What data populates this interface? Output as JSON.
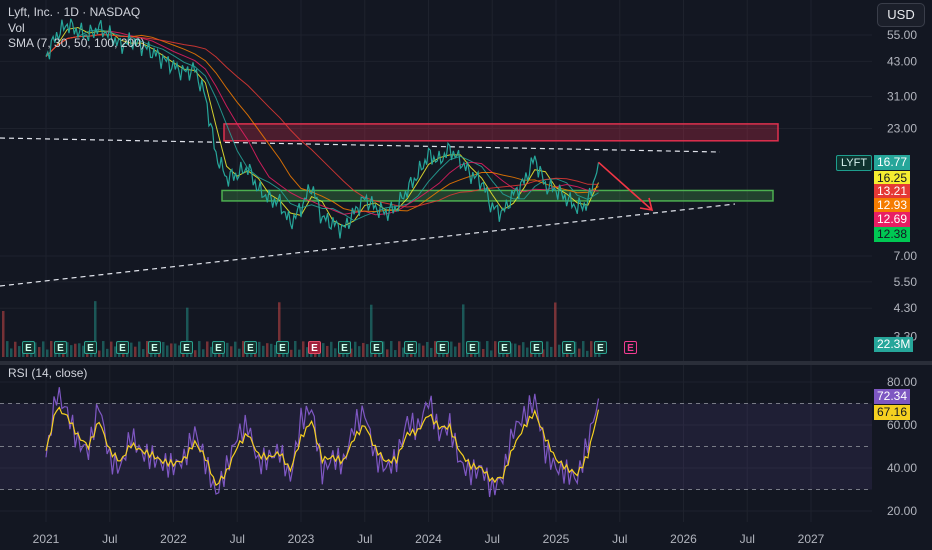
{
  "header": {
    "symbol_line": "Lyft, Inc. · 1D · NASDAQ",
    "vol_label": "Vol",
    "sma_label": "SMA (7, 30, 50, 100, 200)",
    "currency": "USD",
    "rsi_label": "RSI (14, close)"
  },
  "price_axis": {
    "ticks": [
      "55.00",
      "43.00",
      "31.00",
      "23.00",
      "7.00",
      "5.50",
      "4.30",
      "3.30"
    ],
    "last_symbol": "LYFT",
    "tags": [
      {
        "label": "16.77",
        "color": "#26a69a",
        "text": "#ffffff"
      },
      {
        "label": "16.25",
        "color": "#f5ee30",
        "text": "#131722"
      },
      {
        "label": "13.21",
        "color": "#e53935",
        "text": "#ffffff"
      },
      {
        "label": "12.93",
        "color": "#f57c00",
        "text": "#ffffff"
      },
      {
        "label": "12.69",
        "color": "#e91e63",
        "text": "#ffffff"
      },
      {
        "label": "12.38",
        "color": "#00c853",
        "text": "#131722"
      }
    ],
    "volume_tag": "22.3M"
  },
  "rsi_axis": {
    "ticks": [
      "80.00",
      "60.00",
      "40.00",
      "20.00"
    ],
    "rsi_tag": "72.34",
    "sma_tag": "67.16"
  },
  "time_axis": [
    "2021",
    "Jul",
    "2022",
    "Jul",
    "2023",
    "Jul",
    "2024",
    "Jul",
    "2025",
    "Jul",
    "2026",
    "Jul",
    "2027"
  ],
  "earnings": [
    {
      "label": "E",
      "kind": "past"
    },
    {
      "label": "E",
      "kind": "past"
    },
    {
      "label": "E",
      "kind": "past"
    },
    {
      "label": "E",
      "kind": "past"
    },
    {
      "label": "E",
      "kind": "past"
    },
    {
      "label": "E",
      "kind": "past"
    },
    {
      "label": "E",
      "kind": "past"
    },
    {
      "label": "E",
      "kind": "past"
    },
    {
      "label": "E",
      "kind": "past"
    },
    {
      "label": "E",
      "kind": "miss"
    },
    {
      "label": "E",
      "kind": "past"
    },
    {
      "label": "E",
      "kind": "past"
    },
    {
      "label": "E",
      "kind": "past"
    },
    {
      "label": "E",
      "kind": "past"
    },
    {
      "label": "E",
      "kind": "past"
    },
    {
      "label": "E",
      "kind": "past"
    },
    {
      "label": "E",
      "kind": "past"
    },
    {
      "label": "E",
      "kind": "past"
    },
    {
      "label": "E",
      "kind": "past"
    },
    {
      "label": "E",
      "kind": "future"
    }
  ],
  "colors": {
    "background": "#131722",
    "grid": "#1e222d",
    "resistance_zone": "#e0304e",
    "support_zone": "#4caf50",
    "rsi_line": "#7e57c2",
    "rsi_sma": "#f5d020",
    "sma_colors": [
      "#f5ee30",
      "#26a69a",
      "#e91e63",
      "#f57c00",
      "#e53935"
    ]
  },
  "chart_data": [
    {
      "type": "line",
      "title": "Lyft, Inc. · 1D · NASDAQ",
      "scale": "log",
      "x": [
        "2021-01",
        "2021-02",
        "2021-03",
        "2021-04",
        "2021-05",
        "2021-06",
        "2021-07",
        "2021-08",
        "2021-09",
        "2021-10",
        "2021-11",
        "2021-12",
        "2022-01",
        "2022-02",
        "2022-03",
        "2022-04",
        "2022-05",
        "2022-06",
        "2022-07",
        "2022-08",
        "2022-09",
        "2022-10",
        "2022-11",
        "2022-12",
        "2023-01",
        "2023-02",
        "2023-03",
        "2023-04",
        "2023-05",
        "2023-06",
        "2023-07",
        "2023-08",
        "2023-09",
        "2023-10",
        "2023-11",
        "2023-12",
        "2024-01",
        "2024-02",
        "2024-03",
        "2024-04",
        "2024-05",
        "2024-06",
        "2024-07",
        "2024-08",
        "2024-09",
        "2024-10",
        "2024-11",
        "2024-12",
        "2025-01",
        "2025-02",
        "2025-03",
        "2025-04",
        "2025-05"
      ],
      "series": [
        {
          "values": [
            45,
            55,
            61,
            57,
            55,
            59,
            55,
            50,
            52,
            50,
            47,
            44,
            41,
            39,
            40,
            31,
            18,
            14.5,
            15,
            16,
            13,
            12,
            11.5,
            9.5,
            11,
            13.5,
            10,
            9.5,
            9,
            10.5,
            12,
            11,
            10.5,
            11,
            13,
            15,
            18,
            17,
            19,
            17,
            15,
            14,
            11,
            10.5,
            12.5,
            14,
            17.5,
            13.5,
            13,
            12,
            11,
            11.5,
            16.77
          ]
        }
      ],
      "annotations": {
        "resistance_zone": [
          20.5,
          24
        ],
        "support_zone": [
          11.7,
          12.9
        ],
        "last_price": 16.77,
        "sma": [
          16.25,
          13.21,
          12.93,
          12.69,
          12.38
        ]
      }
    },
    {
      "type": "line",
      "title": "RSI (14, close)",
      "ylim": [
        20,
        80
      ],
      "x": [
        "2021-01",
        "2021-02",
        "2021-03",
        "2021-04",
        "2021-05",
        "2021-06",
        "2021-07",
        "2021-08",
        "2021-09",
        "2021-10",
        "2021-11",
        "2021-12",
        "2022-01",
        "2022-02",
        "2022-03",
        "2022-04",
        "2022-05",
        "2022-06",
        "2022-07",
        "2022-08",
        "2022-09",
        "2022-10",
        "2022-11",
        "2022-12",
        "2023-01",
        "2023-02",
        "2023-03",
        "2023-04",
        "2023-05",
        "2023-06",
        "2023-07",
        "2023-08",
        "2023-09",
        "2023-10",
        "2023-11",
        "2023-12",
        "2024-01",
        "2024-02",
        "2024-03",
        "2024-04",
        "2024-05",
        "2024-06",
        "2024-07",
        "2024-08",
        "2024-09",
        "2024-10",
        "2024-11",
        "2024-12",
        "2025-01",
        "2025-02",
        "2025-03",
        "2025-04",
        "2025-05"
      ],
      "series": [
        {
          "values": [
            45,
            75,
            66,
            52,
            48,
            70,
            44,
            40,
            55,
            47,
            45,
            42,
            41,
            44,
            57,
            43,
            28,
            40,
            55,
            60,
            42,
            45,
            48,
            35,
            62,
            68,
            38,
            45,
            42,
            60,
            66,
            45,
            40,
            44,
            62,
            58,
            72,
            56,
            60,
            42,
            38,
            40,
            30,
            36,
            58,
            64,
            72,
            48,
            40,
            38,
            35,
            52,
            72.34
          ]
        },
        {
          "values": [
            48,
            68,
            64,
            55,
            50,
            62,
            48,
            43,
            51,
            48,
            46,
            43,
            42,
            44,
            52,
            45,
            32,
            38,
            50,
            56,
            46,
            45,
            47,
            39,
            54,
            62,
            44,
            45,
            43,
            54,
            60,
            49,
            43,
            44,
            56,
            57,
            65,
            59,
            59,
            47,
            41,
            40,
            34,
            36,
            50,
            59,
            66,
            54,
            44,
            40,
            37,
            46,
            67.16
          ]
        }
      ]
    }
  ]
}
